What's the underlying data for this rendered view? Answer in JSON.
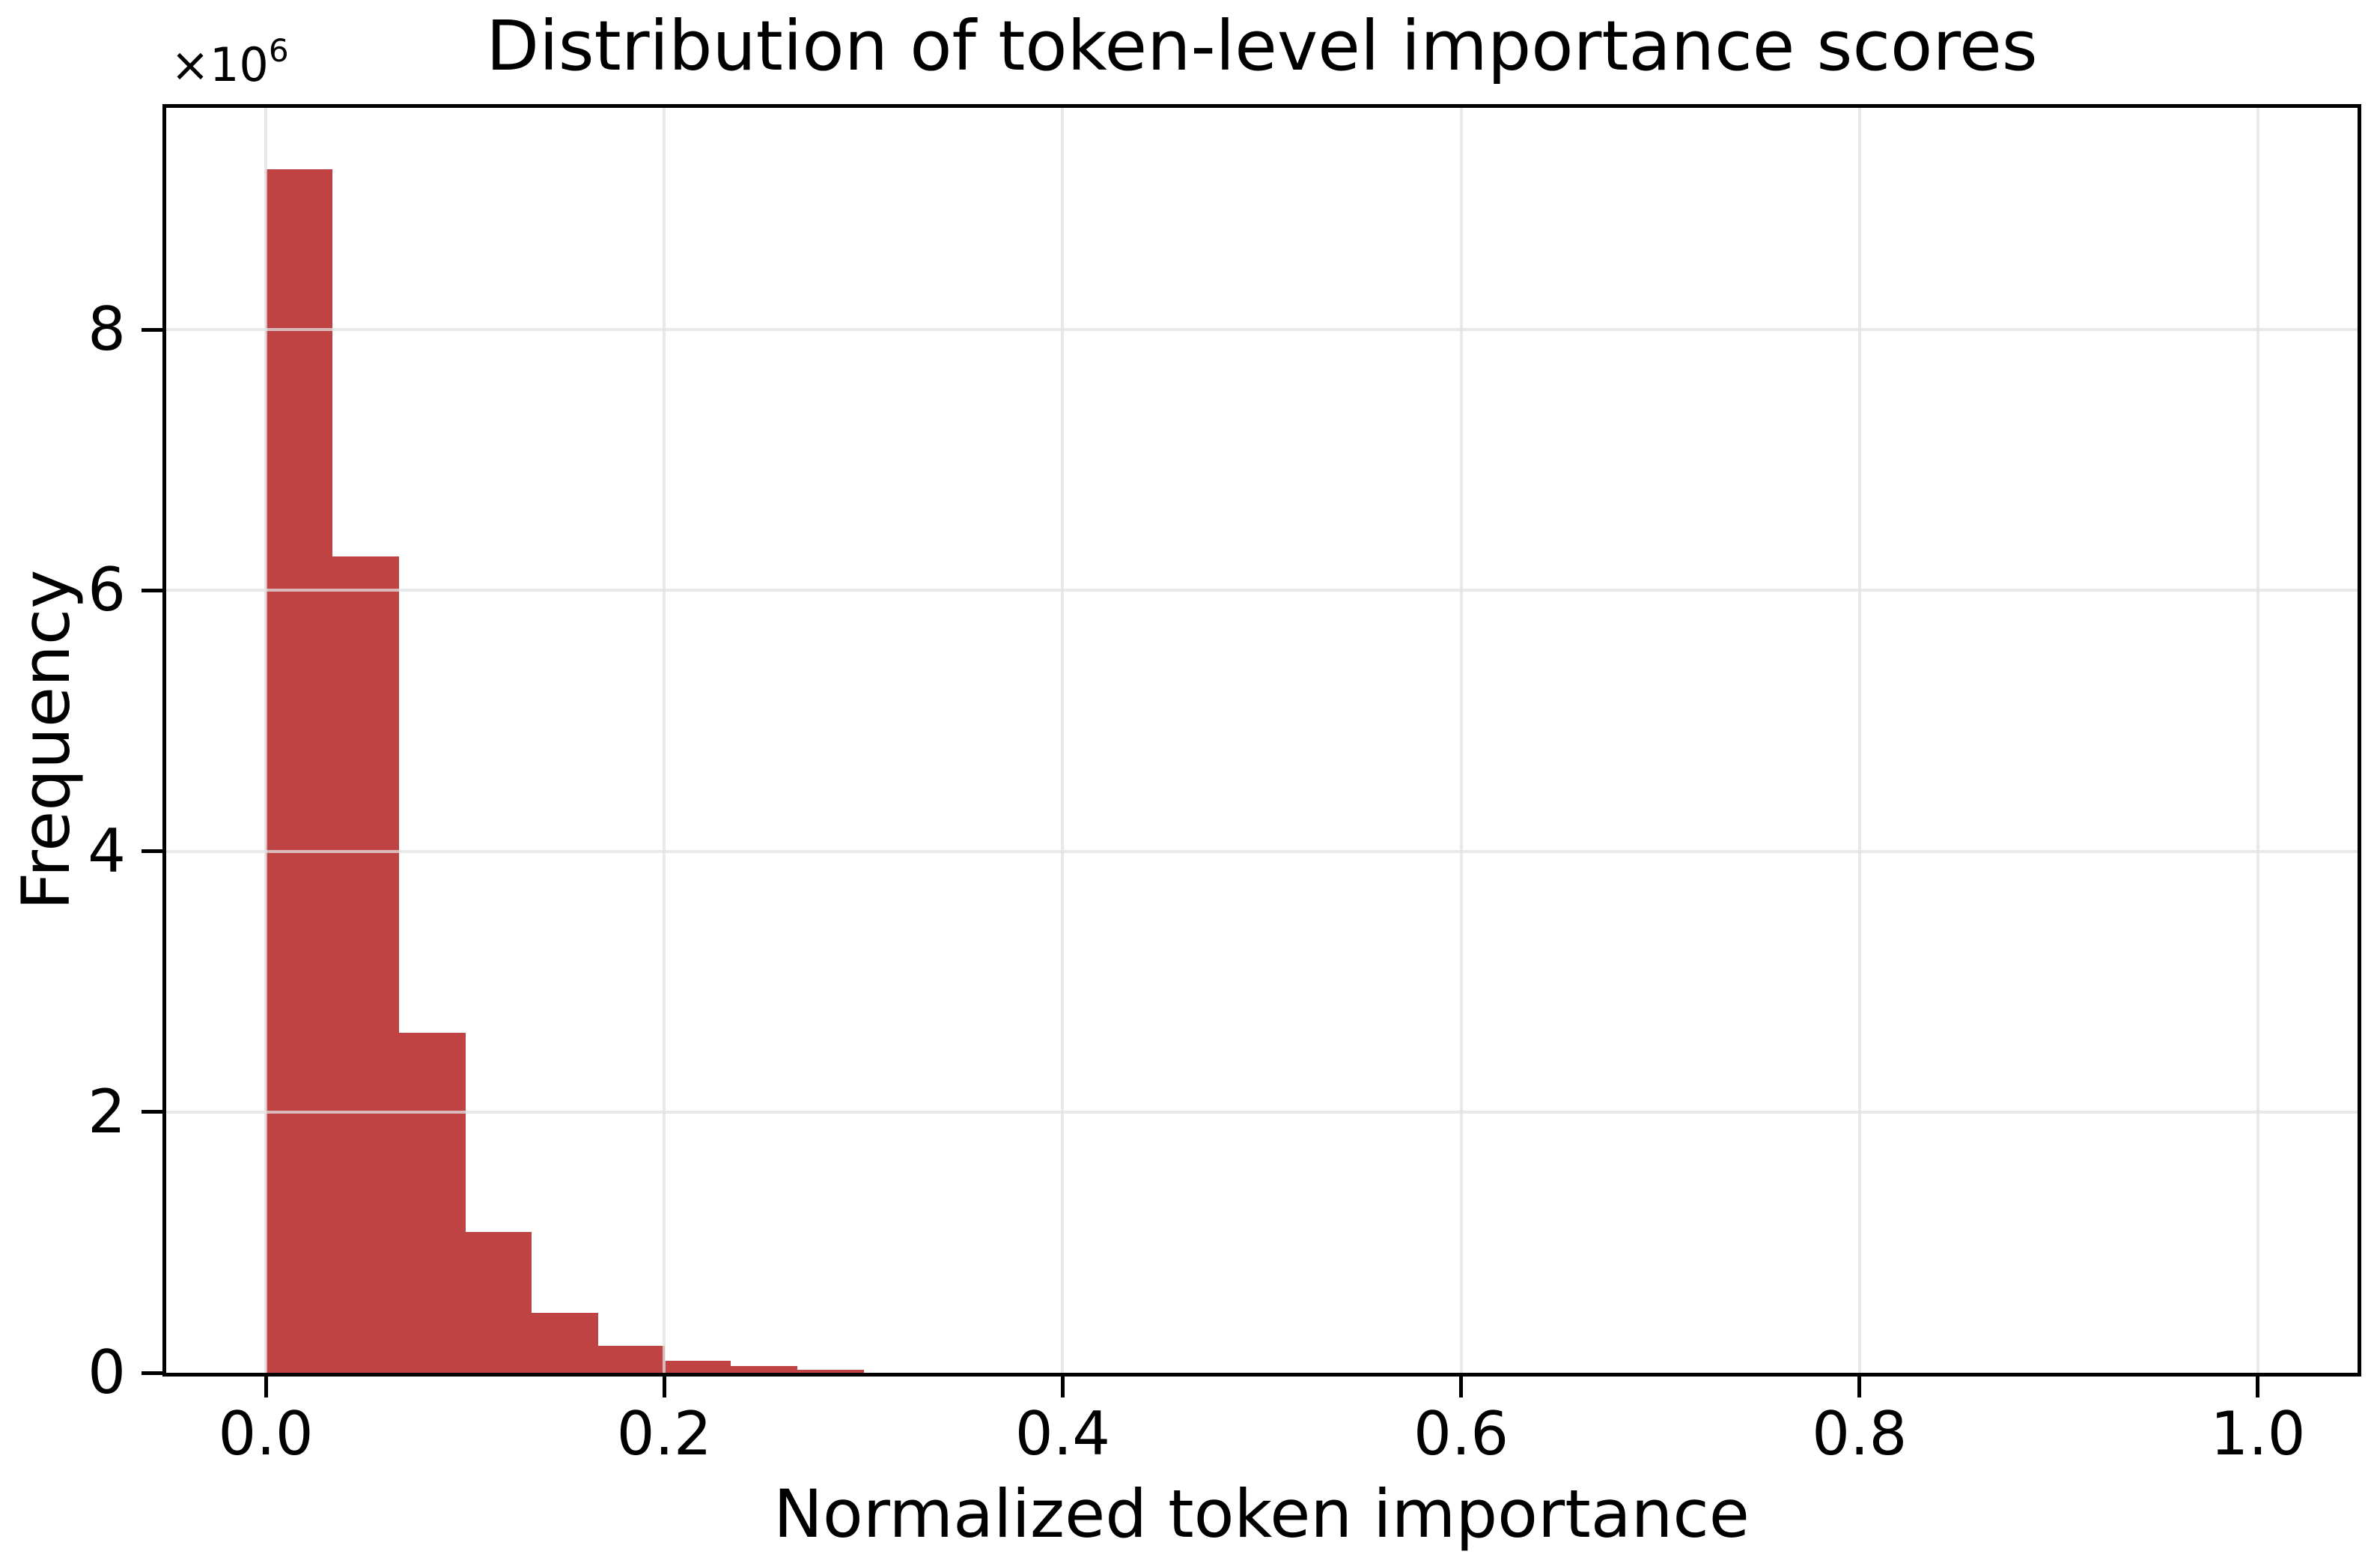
{
  "chart_data": {
    "type": "bar",
    "chart_kind": "histogram",
    "title": "Distribution of token-level importance scores",
    "xlabel": "Normalized token importance",
    "ylabel": "Frequency",
    "y_offset": {
      "base": "×10",
      "exp": "6"
    },
    "y_unit_multiplier": 1000000,
    "xlim": [
      -0.05,
      1.05
    ],
    "ylim": [
      0,
      9700000
    ],
    "grid": true,
    "legend_position": "none",
    "bar_color": "#c04343",
    "grid_color": "#e9e9e9",
    "axis_color": "#000000",
    "background_color": "#ffffff",
    "x_ticks": [
      {
        "value": 0.0,
        "label": "0.0"
      },
      {
        "value": 0.2,
        "label": "0.2"
      },
      {
        "value": 0.4,
        "label": "0.4"
      },
      {
        "value": 0.6,
        "label": "0.6"
      },
      {
        "value": 0.8,
        "label": "0.8"
      },
      {
        "value": 1.0,
        "label": "1.0"
      }
    ],
    "y_ticks": [
      {
        "value": 0,
        "label": "0"
      },
      {
        "value": 2000000,
        "label": "2"
      },
      {
        "value": 4000000,
        "label": "4"
      },
      {
        "value": 6000000,
        "label": "6"
      },
      {
        "value": 8000000,
        "label": "8"
      }
    ],
    "bin_width": 0.0333,
    "bins": [
      {
        "x0": 0.0,
        "x1": 0.0333,
        "count": 9230000
      },
      {
        "x0": 0.0333,
        "x1": 0.0667,
        "count": 6260000
      },
      {
        "x0": 0.0667,
        "x1": 0.1,
        "count": 2610000
      },
      {
        "x0": 0.1,
        "x1": 0.1333,
        "count": 1080000
      },
      {
        "x0": 0.1333,
        "x1": 0.1667,
        "count": 460000
      },
      {
        "x0": 0.1667,
        "x1": 0.2,
        "count": 207000
      },
      {
        "x0": 0.2,
        "x1": 0.2333,
        "count": 92000
      },
      {
        "x0": 0.2333,
        "x1": 0.2667,
        "count": 52000
      },
      {
        "x0": 0.2667,
        "x1": 0.3,
        "count": 23000
      }
    ]
  }
}
